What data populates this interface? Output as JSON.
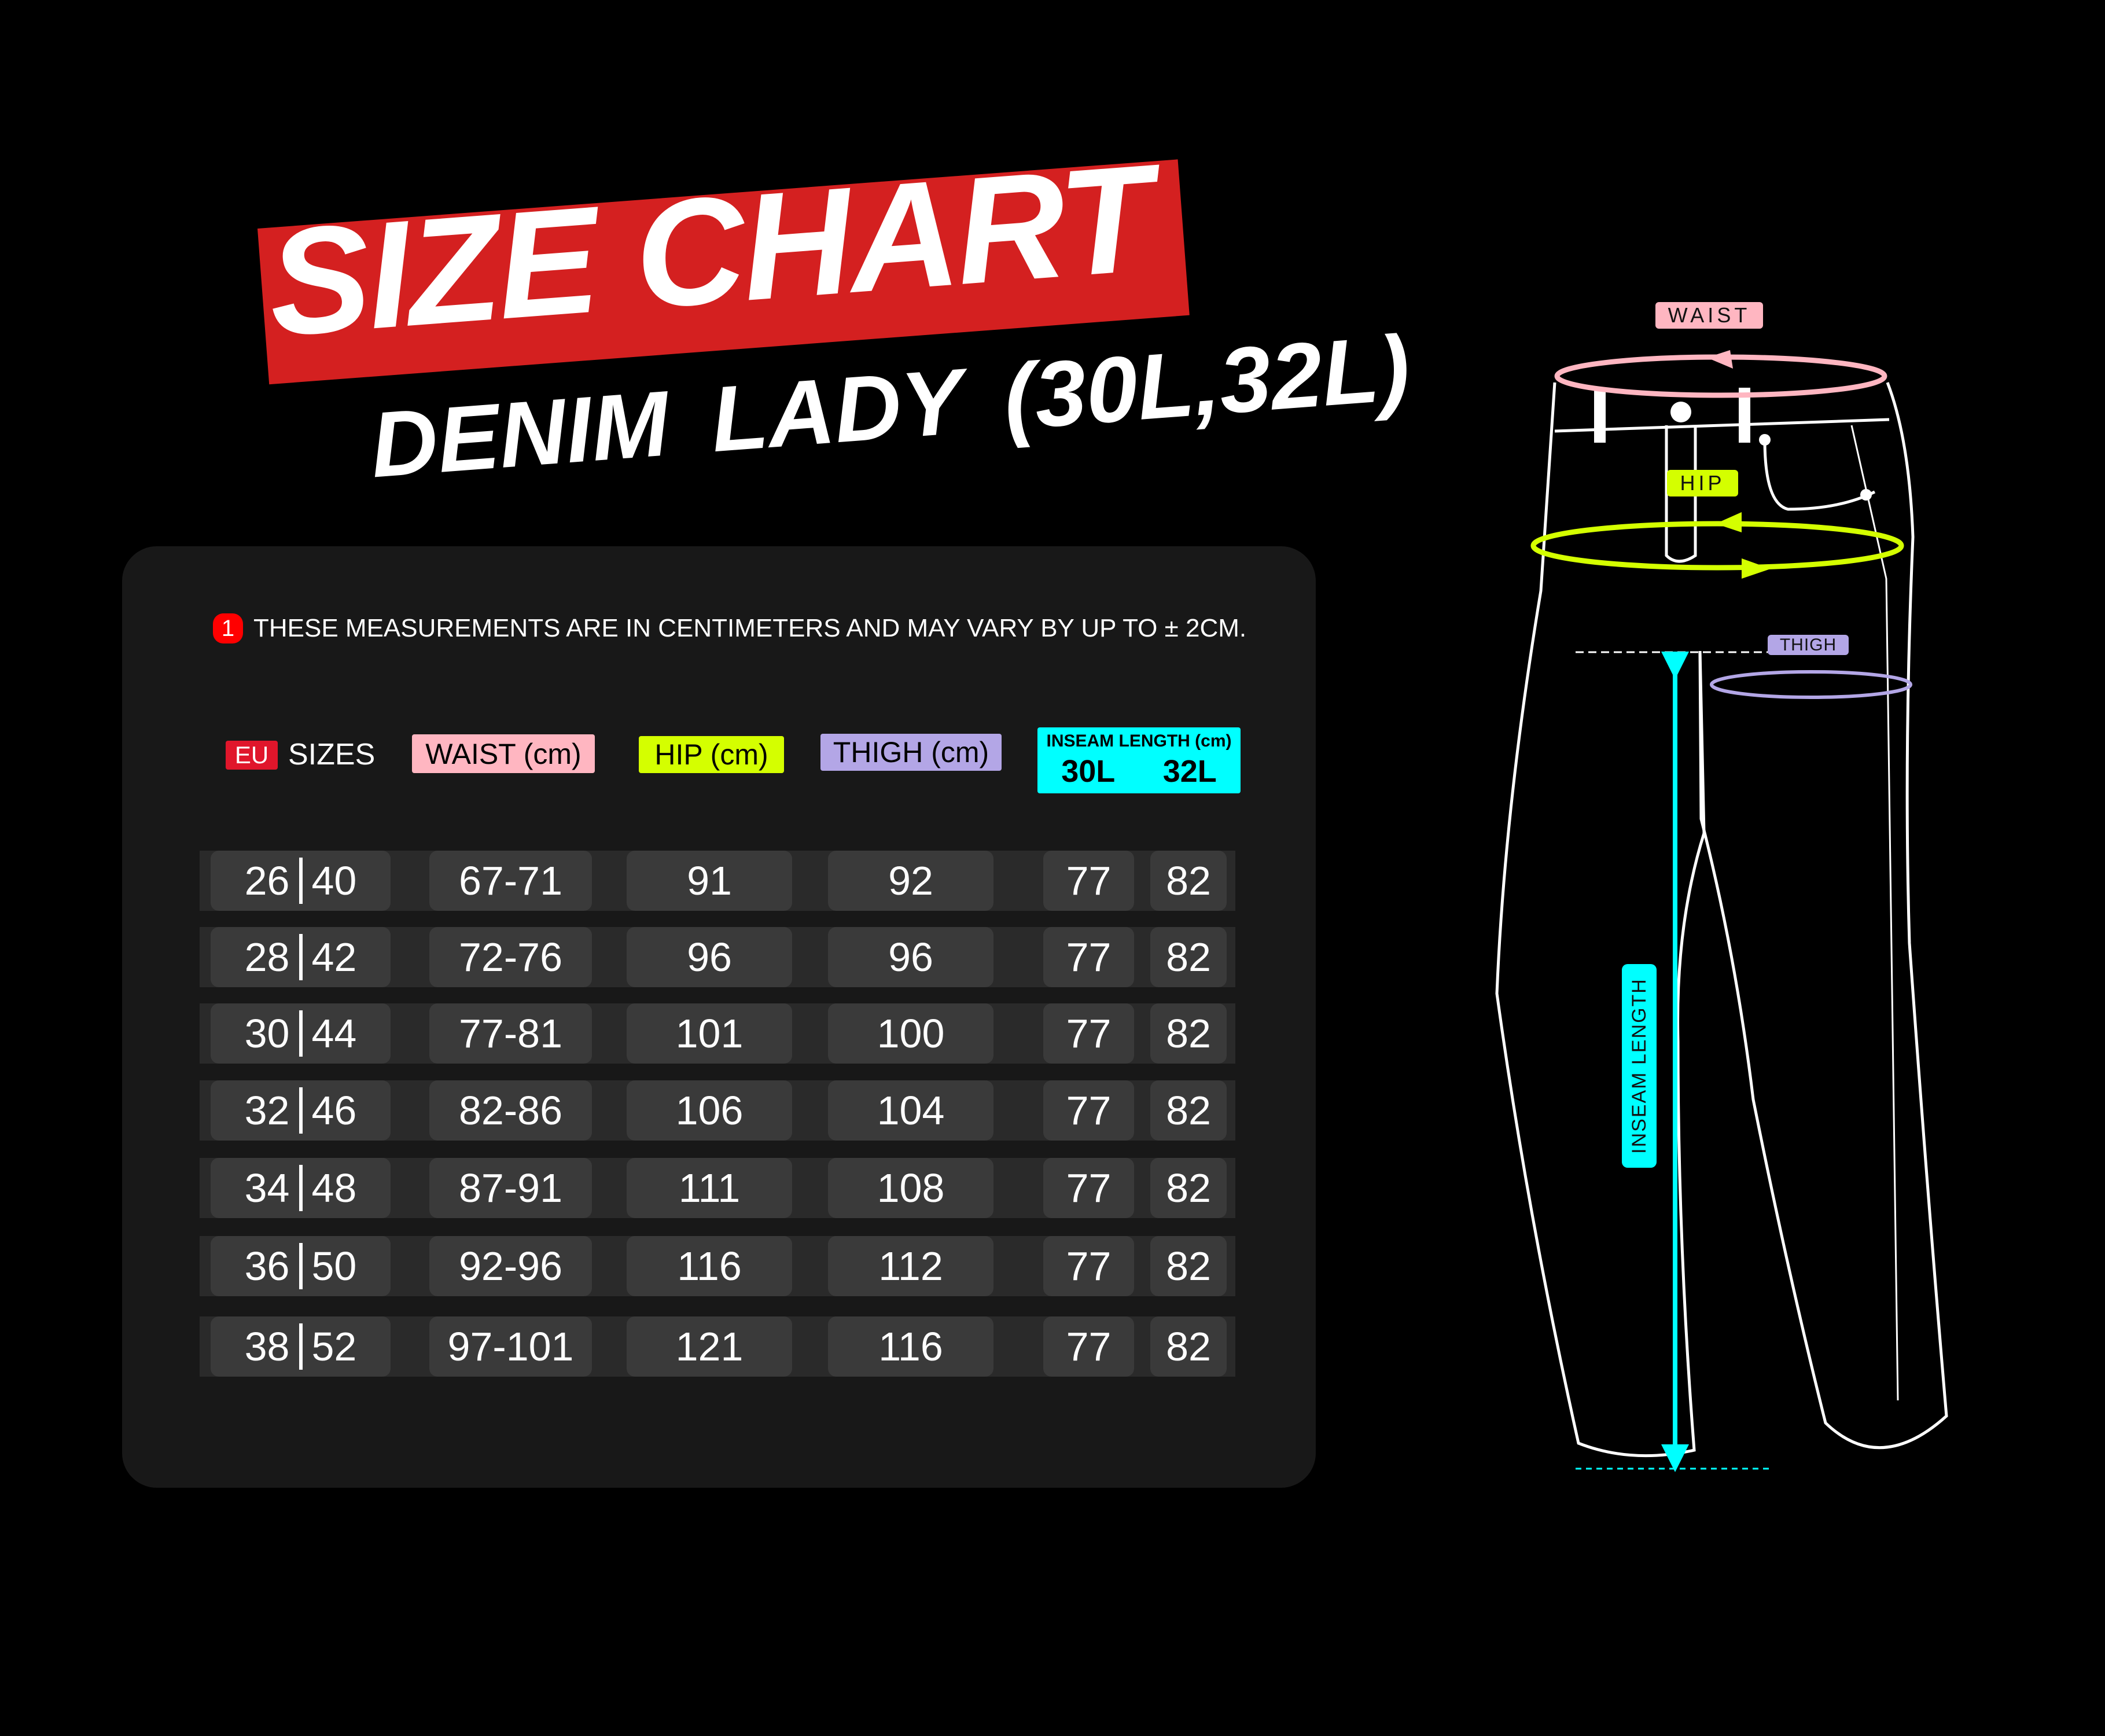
{
  "header": {
    "title": "SIZE CHART",
    "subtitle": "DENIM LADY (30L,32L)",
    "banner_color": "#d42020"
  },
  "note": {
    "icon": "alert-badge",
    "badge": "1",
    "text": "THESE MEASUREMENTS ARE IN CENTIMETERS AND MAY VARY BY UP TO ± 2CM."
  },
  "table": {
    "headers": {
      "eu": "EU",
      "sizes": "SIZES",
      "waist": "WAIST (cm)",
      "hip": "HIP (cm)",
      "thigh": "THIGH (cm)",
      "inseam": "INSEAM LENGTH (cm)",
      "l30": "30L",
      "l32": "32L"
    },
    "colors": {
      "eu": "#e0162b",
      "waist": "#ffb6c1",
      "hip": "#d4ff00",
      "thigh": "#b3a6e6",
      "inseam": "#00ffff"
    },
    "rows": [
      {
        "size_a": "26",
        "size_b": "40",
        "waist": "67-71",
        "hip": "91",
        "thigh": "92",
        "l30": "77",
        "l32": "82"
      },
      {
        "size_a": "28",
        "size_b": "42",
        "waist": "72-76",
        "hip": "96",
        "thigh": "96",
        "l30": "77",
        "l32": "82"
      },
      {
        "size_a": "30",
        "size_b": "44",
        "waist": "77-81",
        "hip": "101",
        "thigh": "100",
        "l30": "77",
        "l32": "82"
      },
      {
        "size_a": "32",
        "size_b": "46",
        "waist": "82-86",
        "hip": "106",
        "thigh": "104",
        "l30": "77",
        "l32": "82"
      },
      {
        "size_a": "34",
        "size_b": "48",
        "waist": "87-91",
        "hip": "111",
        "thigh": "108",
        "l30": "77",
        "l32": "82"
      },
      {
        "size_a": "36",
        "size_b": "50",
        "waist": "92-96",
        "hip": "116",
        "thigh": "112",
        "l30": "77",
        "l32": "82"
      },
      {
        "size_a": "38",
        "size_b": "52",
        "waist": "97-101",
        "hip": "121",
        "thigh": "116",
        "l30": "77",
        "l32": "82"
      }
    ]
  },
  "diagram": {
    "waist": "WAIST",
    "hip": "HIP",
    "thigh": "THIGH",
    "inseam": "INSEAM LENGTH"
  }
}
